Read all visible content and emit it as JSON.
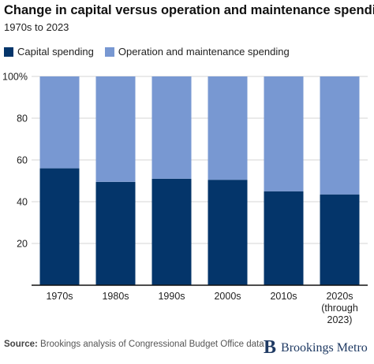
{
  "title": "Change in capital versus operation and maintenance spending",
  "subtitle": "1970s to 2023",
  "colors": {
    "capital": "#04356a",
    "om": "#7898d2",
    "grid": "#d4d4d4",
    "axis": "#111111"
  },
  "chart_data": {
    "type": "bar",
    "stacked": true,
    "categories": [
      "1970s",
      "1980s",
      "1990s",
      "2000s",
      "2010s",
      "2020s (through 2023)"
    ],
    "category_lines": [
      [
        "1970s"
      ],
      [
        "1980s"
      ],
      [
        "1990s"
      ],
      [
        "2000s"
      ],
      [
        "2010s"
      ],
      [
        "2020s",
        "(through",
        "2023)"
      ]
    ],
    "series": [
      {
        "name": "Capital spending",
        "values": [
          56,
          49.5,
          51,
          50.5,
          45,
          43.5
        ]
      },
      {
        "name": "Operation and maintenance spending",
        "values": [
          44,
          50.5,
          49,
          49.5,
          55,
          56.5
        ]
      }
    ],
    "yticks": [
      "20",
      "40",
      "60",
      "80",
      "100%"
    ],
    "ytick_values": [
      20,
      40,
      60,
      80,
      100
    ],
    "ylim": [
      0,
      100
    ],
    "grid": true,
    "legend_position": "top-left"
  },
  "footer": {
    "source_label": "Source:",
    "source_text": "Brookings analysis of Congressional Budget Office data"
  },
  "brand": {
    "mark": "B",
    "name": "Brookings Metro"
  }
}
